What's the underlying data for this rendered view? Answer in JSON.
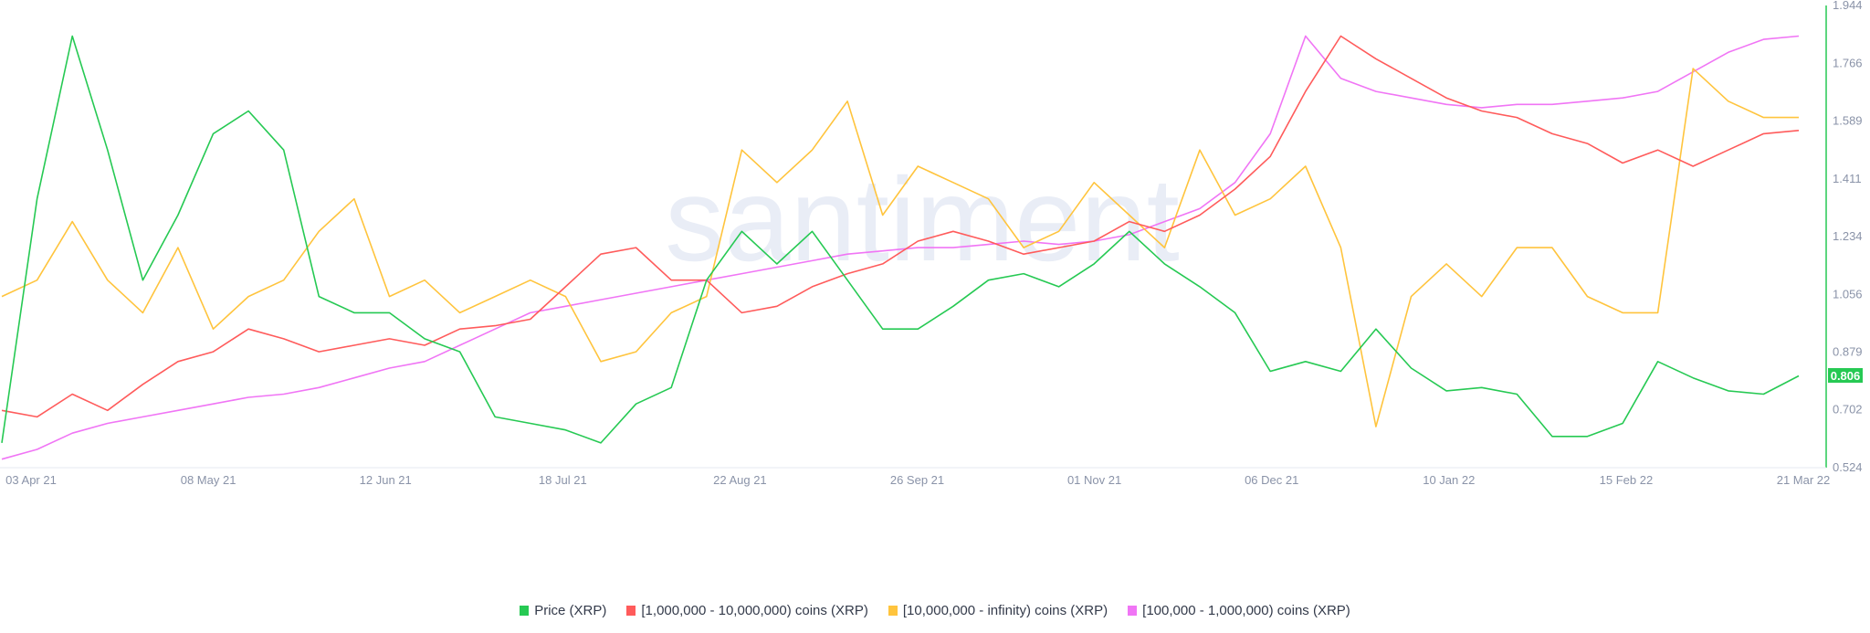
{
  "chart_data": {
    "type": "line",
    "title": "",
    "watermark": "santiment",
    "x_tick_labels": [
      "03 Apr 21",
      "08 May 21",
      "12 Jun 21",
      "18 Jul 21",
      "22 Aug 21",
      "26 Sep 21",
      "01 Nov 21",
      "06 Dec 21",
      "10 Jan 22",
      "15 Feb 22",
      "21 Mar 22"
    ],
    "y_tick_labels": [
      "1.944",
      "1.766",
      "1.589",
      "1.411",
      "1.234",
      "1.056",
      "0.879",
      "0.702",
      "0.524"
    ],
    "ylim": [
      0.524,
      1.944
    ],
    "x_range": [
      "01 Apr 21",
      "20 Mar 22"
    ],
    "sampling": "weekly (approximate)",
    "current_price_label": "0.806",
    "grid": false,
    "legend_position": "bottom",
    "series": [
      {
        "name": "Price (XRP)",
        "color": "#26c953",
        "values": [
          0.6,
          1.35,
          1.85,
          1.5,
          1.1,
          1.3,
          1.55,
          1.62,
          1.5,
          1.05,
          1.0,
          1.0,
          0.92,
          0.88,
          0.68,
          0.66,
          0.64,
          0.6,
          0.72,
          0.77,
          1.1,
          1.25,
          1.15,
          1.25,
          1.1,
          0.95,
          0.95,
          1.02,
          1.1,
          1.12,
          1.08,
          1.15,
          1.25,
          1.15,
          1.08,
          1.0,
          0.82,
          0.85,
          0.82,
          0.95,
          0.83,
          0.76,
          0.77,
          0.75,
          0.62,
          0.62,
          0.66,
          0.85,
          0.8,
          0.76,
          0.75,
          0.806
        ]
      },
      {
        "name": "[1,000,000 - 10,000,000) coins (XRP)",
        "color": "#ff5b5b",
        "values": [
          0.7,
          0.68,
          0.75,
          0.7,
          0.78,
          0.85,
          0.88,
          0.95,
          0.92,
          0.88,
          0.9,
          0.92,
          0.9,
          0.95,
          0.96,
          0.98,
          1.08,
          1.18,
          1.2,
          1.1,
          1.1,
          1.0,
          1.02,
          1.08,
          1.12,
          1.15,
          1.22,
          1.25,
          1.22,
          1.18,
          1.2,
          1.22,
          1.28,
          1.25,
          1.3,
          1.38,
          1.48,
          1.68,
          1.85,
          1.78,
          1.72,
          1.66,
          1.62,
          1.6,
          1.55,
          1.52,
          1.46,
          1.5,
          1.45,
          1.5,
          1.55,
          1.56
        ]
      },
      {
        "name": "[10,000,000 - infinity) coins (XRP)",
        "color": "#ffc43d",
        "values": [
          1.05,
          1.1,
          1.28,
          1.1,
          1.0,
          1.2,
          0.95,
          1.05,
          1.1,
          1.25,
          1.35,
          1.05,
          1.1,
          1.0,
          1.05,
          1.1,
          1.05,
          0.85,
          0.88,
          1.0,
          1.05,
          1.5,
          1.4,
          1.5,
          1.65,
          1.3,
          1.45,
          1.4,
          1.35,
          1.2,
          1.25,
          1.4,
          1.3,
          1.2,
          1.5,
          1.3,
          1.35,
          1.45,
          1.2,
          0.65,
          1.05,
          1.15,
          1.05,
          1.2,
          1.2,
          1.05,
          1.0,
          1.0,
          1.75,
          1.65,
          1.6,
          1.6
        ]
      },
      {
        "name": "[100,000  - 1,000,000) coins (XRP)",
        "color": "#f075f5",
        "values": [
          0.55,
          0.58,
          0.63,
          0.66,
          0.68,
          0.7,
          0.72,
          0.74,
          0.75,
          0.77,
          0.8,
          0.83,
          0.85,
          0.9,
          0.95,
          1.0,
          1.02,
          1.04,
          1.06,
          1.08,
          1.1,
          1.12,
          1.14,
          1.16,
          1.18,
          1.19,
          1.2,
          1.2,
          1.21,
          1.22,
          1.21,
          1.22,
          1.24,
          1.28,
          1.32,
          1.4,
          1.55,
          1.85,
          1.72,
          1.68,
          1.66,
          1.64,
          1.63,
          1.64,
          1.64,
          1.65,
          1.66,
          1.68,
          1.74,
          1.8,
          1.84,
          1.85
        ]
      }
    ]
  }
}
